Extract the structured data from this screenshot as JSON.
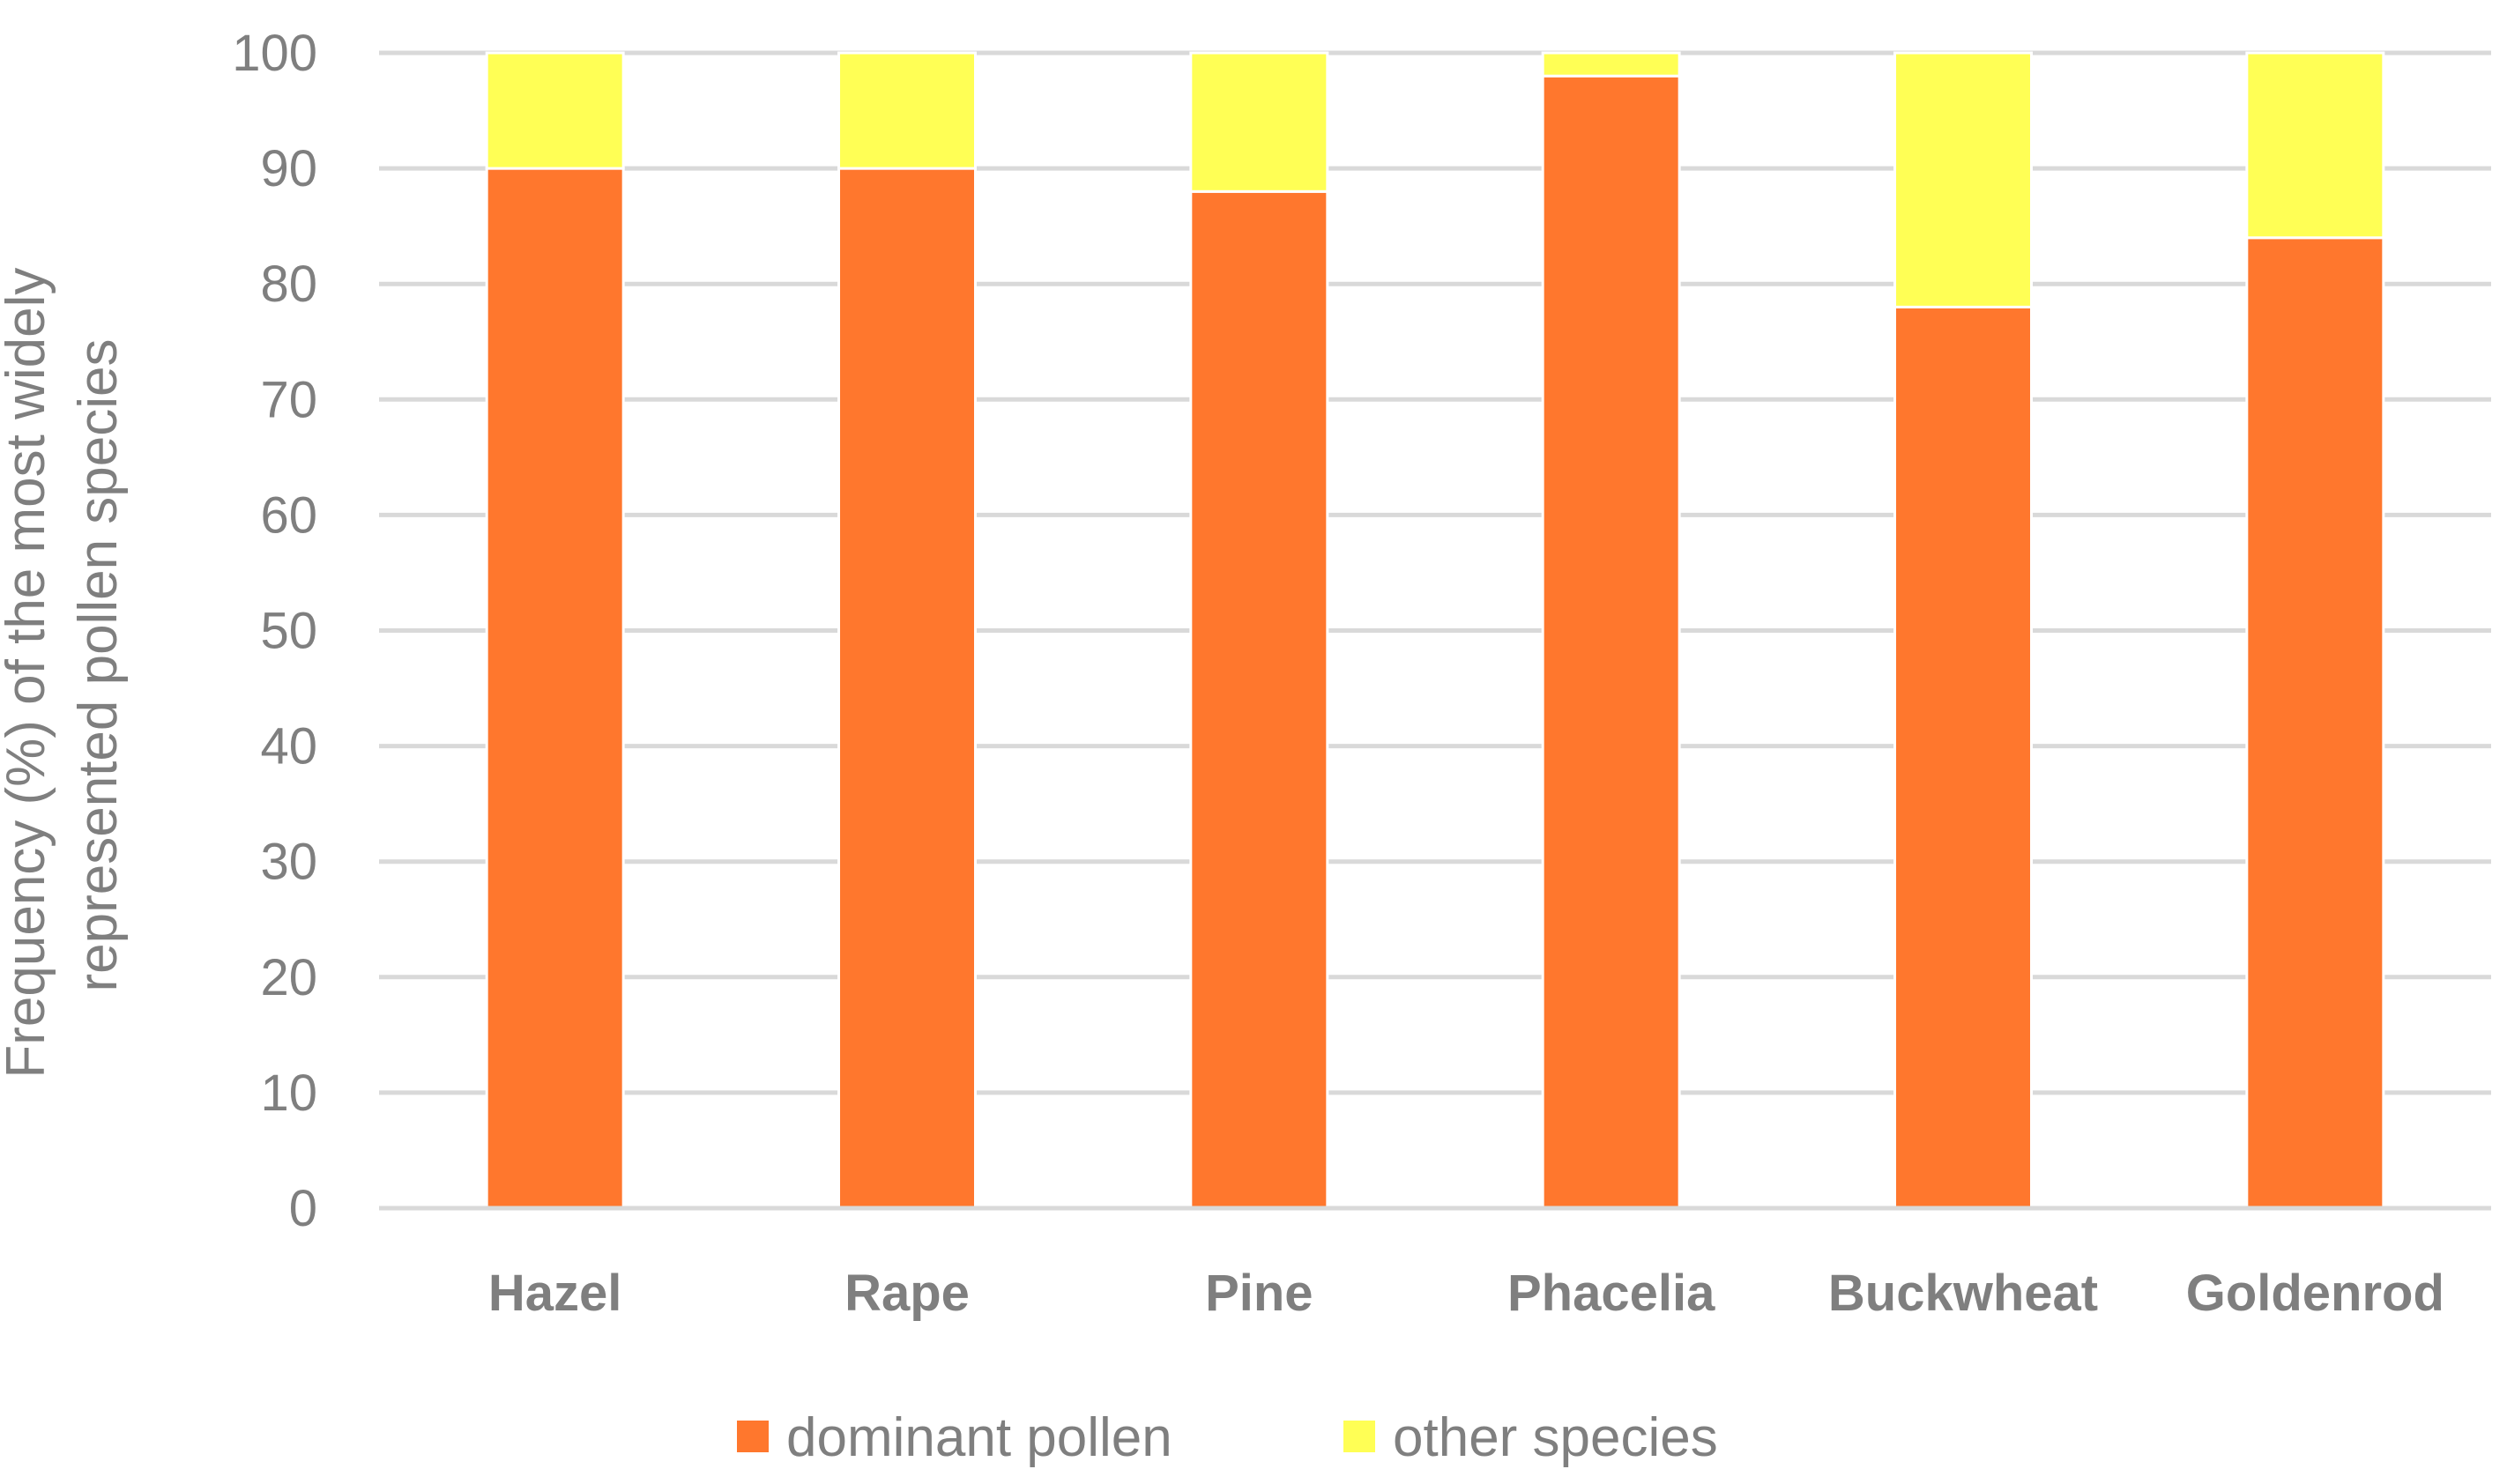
{
  "chart_data": {
    "type": "bar",
    "stacked": true,
    "categories": [
      "Hazel",
      "Rape",
      "Pine",
      "Phacelia",
      "Buckwheat",
      "Goldenrod"
    ],
    "series": [
      {
        "name": "dominant pollen",
        "color": "#ff772d",
        "values": [
          90,
          90,
          88,
          98,
          78,
          84
        ]
      },
      {
        "name": "other species",
        "color": "#ffff55",
        "values": [
          10,
          10,
          12,
          2,
          22,
          16
        ]
      }
    ],
    "title": "",
    "xlabel": "",
    "ylabel": "Frequency (%) of the most widely represented pollen species",
    "ylabel_lines": [
      "Frequency (%) of the most widely",
      "represented pollen species"
    ],
    "ylim": [
      0,
      100
    ],
    "yticks": [
      "0",
      "10",
      "20",
      "30",
      "40",
      "50",
      "60",
      "70",
      "80",
      "90",
      "100"
    ],
    "grid": true,
    "legend_position": "bottom"
  }
}
